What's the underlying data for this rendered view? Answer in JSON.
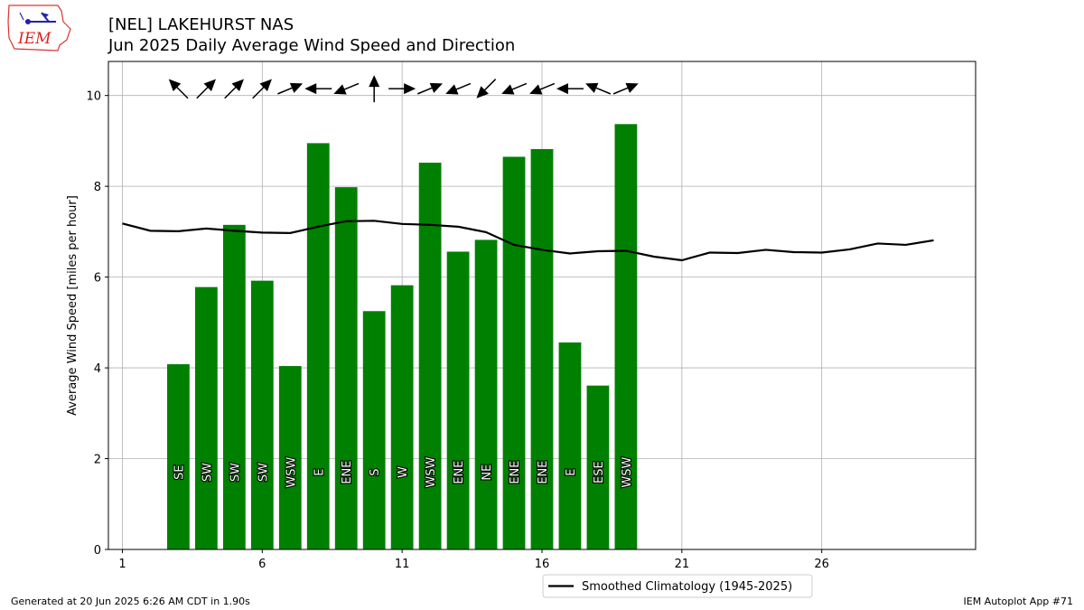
{
  "logo": {
    "text": "IEM"
  },
  "title_line1": "[NEL] LAKEHURST NAS",
  "title_line2": "Jun 2025 Daily Average Wind Speed and Direction",
  "footer_left": "Generated at 20 Jun 2025 6:26 AM CDT in 1.90s",
  "footer_right": "IEM Autoplot App #71",
  "chart_data": {
    "type": "bar",
    "ylabel": "Average Wind Speed [miles per hour]",
    "xlim": [
      0.5,
      31.5
    ],
    "ylim": [
      0,
      10.75
    ],
    "xticks": [
      1,
      6,
      11,
      16,
      21,
      26
    ],
    "yticks": [
      0,
      2,
      4,
      6,
      8,
      10
    ],
    "grid": true,
    "bar_color": "#008000",
    "days": [
      3,
      4,
      5,
      6,
      7,
      8,
      9,
      10,
      11,
      12,
      13,
      14,
      15,
      16,
      17,
      18,
      19
    ],
    "speeds": [
      4.08,
      5.78,
      7.15,
      5.92,
      4.04,
      8.95,
      7.98,
      5.25,
      5.82,
      8.52,
      6.56,
      6.82,
      8.65,
      8.82,
      4.56,
      3.61,
      9.37
    ],
    "directions": [
      "SE",
      "SW",
      "SW",
      "SW",
      "WSW",
      "E",
      "ENE",
      "S",
      "W",
      "WSW",
      "ENE",
      "NE",
      "ENE",
      "ENE",
      "E",
      "ESE",
      "WSW"
    ],
    "climatology": {
      "name": "Smoothed Climatology (1945-2025)",
      "color": "#000000",
      "x": [
        1,
        2,
        3,
        4,
        5,
        6,
        7,
        8,
        9,
        10,
        11,
        12,
        13,
        14,
        15,
        16,
        17,
        18,
        19,
        20,
        21,
        22,
        23,
        24,
        25,
        26,
        27,
        28,
        29,
        30
      ],
      "y": [
        7.18,
        7.02,
        7.01,
        7.07,
        7.02,
        6.98,
        6.97,
        7.11,
        7.23,
        7.24,
        7.17,
        7.15,
        7.11,
        6.99,
        6.71,
        6.6,
        6.52,
        6.57,
        6.58,
        6.45,
        6.37,
        6.54,
        6.53,
        6.6,
        6.55,
        6.54,
        6.61,
        6.74,
        6.71,
        6.81
      ]
    },
    "legend_position": "bottom-right-outside"
  }
}
